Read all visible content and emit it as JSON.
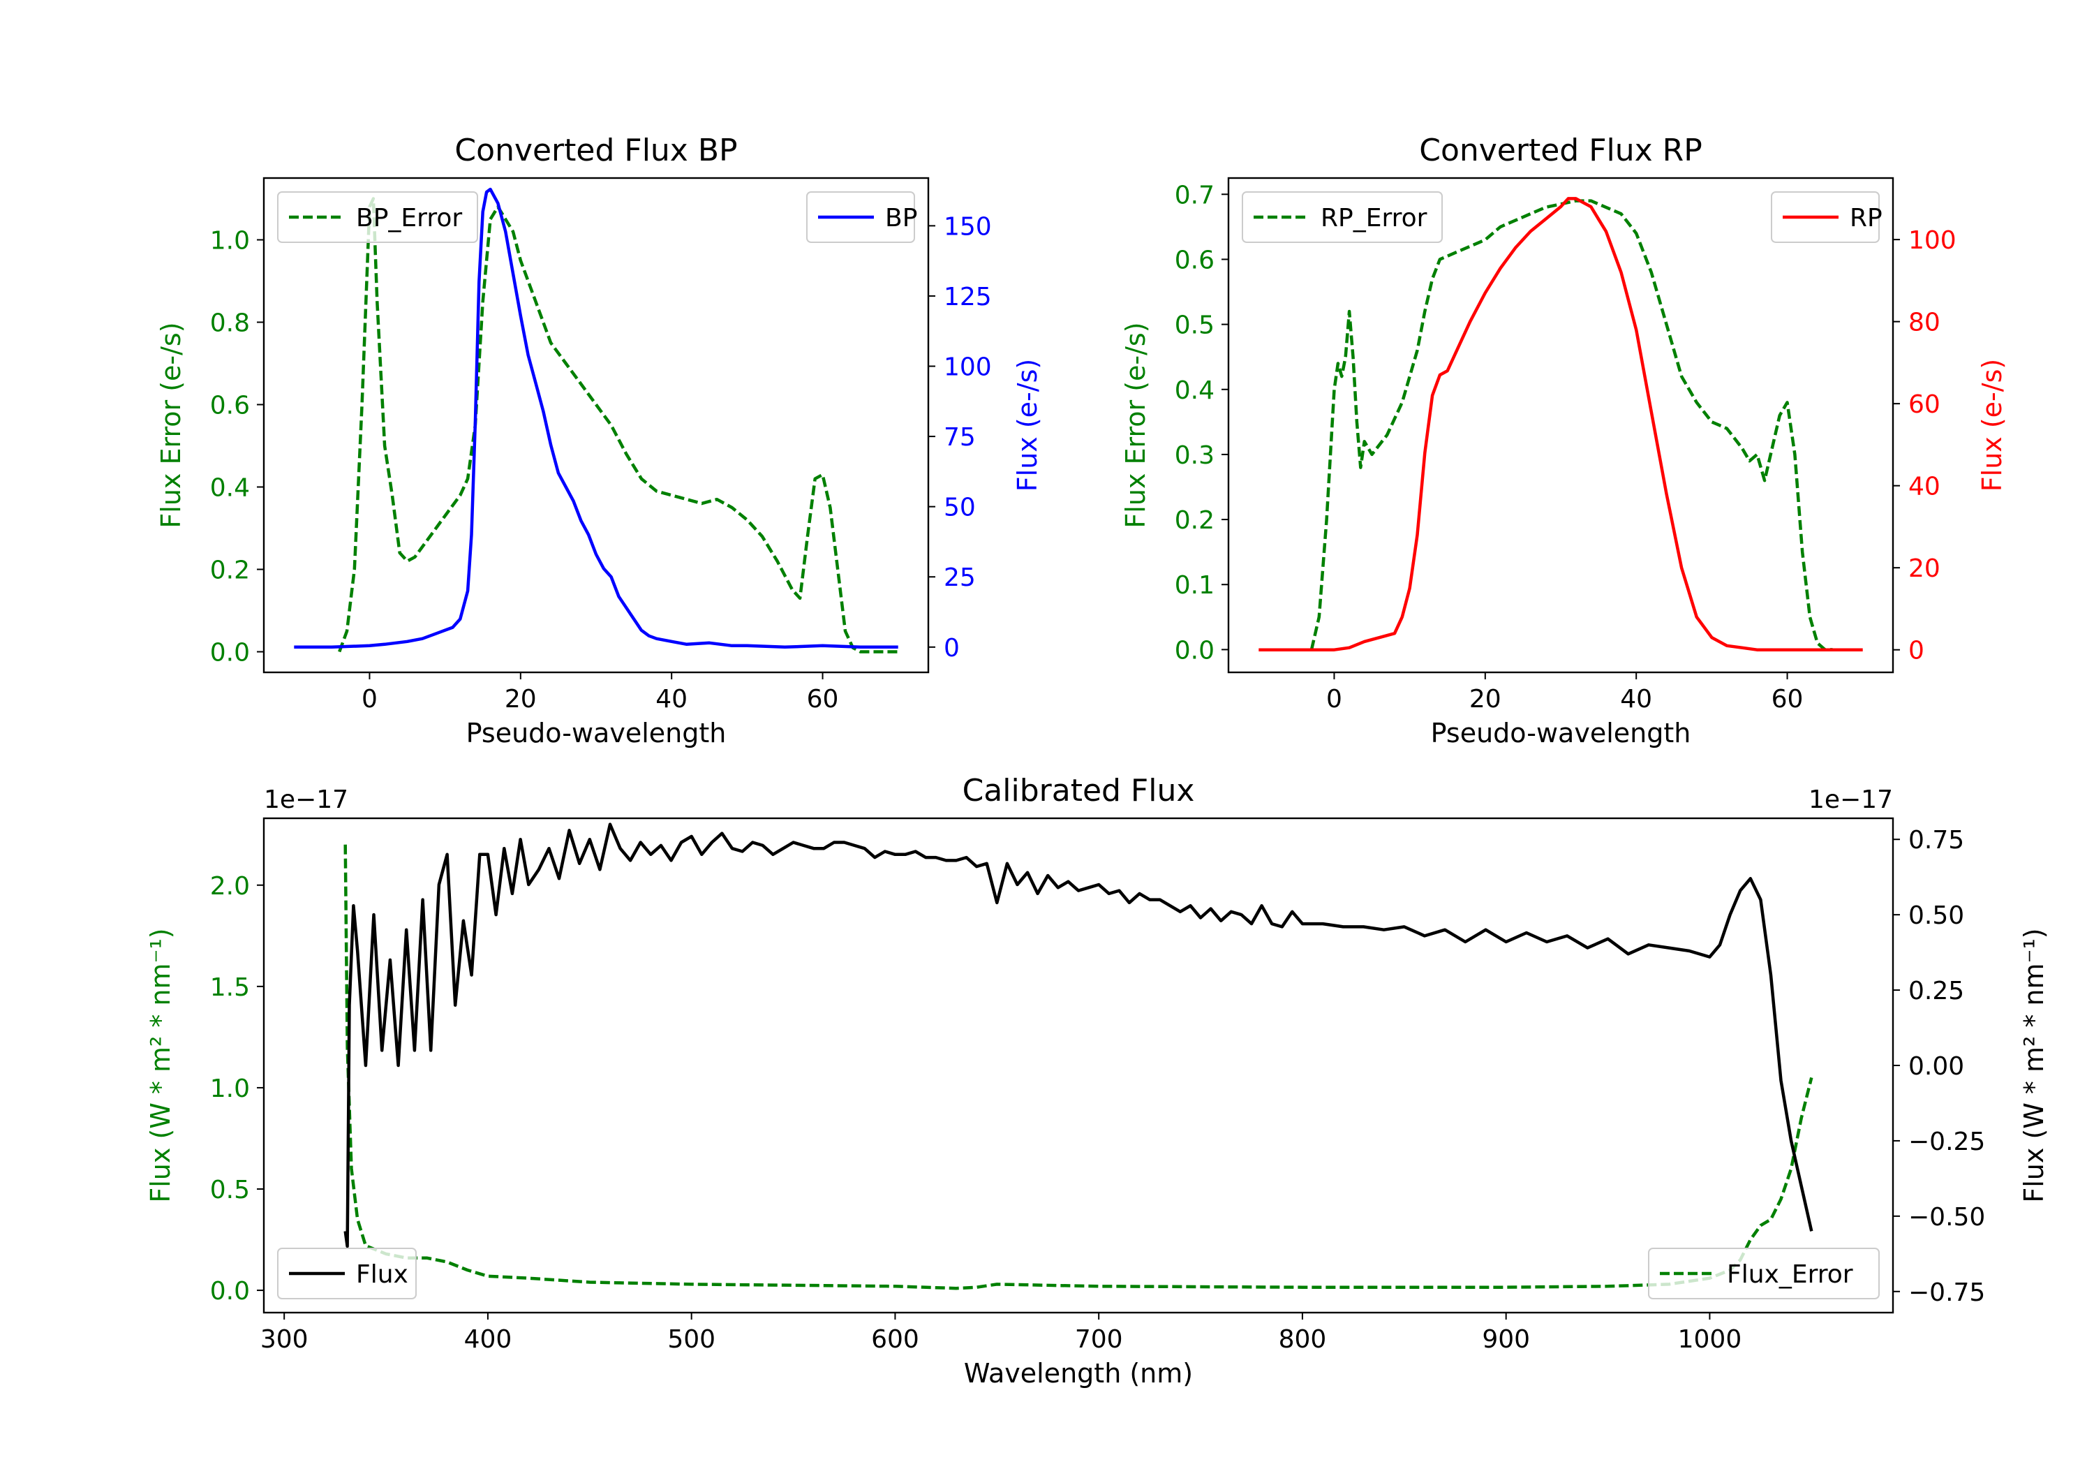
{
  "colors": {
    "error": "#008000",
    "bp": "#0000ff",
    "rp": "#ff0000",
    "flux": "#000000",
    "axis": "#000000"
  },
  "chart_data": [
    {
      "id": "bp",
      "type": "line",
      "title": "Converted Flux BP",
      "xlabel": "Pseudo-wavelength",
      "ylabel_left": "Flux Error (e-/s)",
      "ylabel_right": "Flux (e-/s)",
      "xlim": [
        -14,
        74
      ],
      "ylim_left": [
        -0.05,
        1.15
      ],
      "ylim_right": [
        -9,
        167
      ],
      "xticks": [
        0,
        20,
        40,
        60
      ],
      "yticks_left": [
        0.0,
        0.2,
        0.4,
        0.6,
        0.8,
        1.0
      ],
      "yticks_left_labels": [
        "0.0",
        "0.2",
        "0.4",
        "0.6",
        "0.8",
        "1.0"
      ],
      "yticks_right": [
        0,
        25,
        50,
        75,
        100,
        125,
        150
      ],
      "yticks_right_labels": [
        "0",
        "25",
        "50",
        "75",
        "100",
        "125",
        "150"
      ],
      "series": [
        {
          "name": "BP_Error",
          "axis": "left",
          "style": "dashed",
          "color": "#008000",
          "x": [
            -4,
            -3,
            -2,
            -1,
            0,
            0.5,
            1,
            2,
            3,
            4,
            5,
            6,
            8,
            10,
            12,
            13,
            14,
            15,
            16,
            17,
            18,
            19,
            20,
            22,
            24,
            26,
            28,
            30,
            32,
            34,
            36,
            38,
            40,
            42,
            44,
            46,
            48,
            50,
            52,
            54,
            56,
            57,
            58,
            59,
            60,
            61,
            62,
            63,
            64,
            65,
            70
          ],
          "y": [
            0.0,
            0.05,
            0.2,
            0.6,
            1.08,
            1.1,
            0.85,
            0.5,
            0.38,
            0.24,
            0.22,
            0.23,
            0.28,
            0.33,
            0.38,
            0.42,
            0.55,
            0.85,
            1.05,
            1.08,
            1.05,
            1.02,
            0.95,
            0.85,
            0.75,
            0.7,
            0.65,
            0.6,
            0.55,
            0.48,
            0.42,
            0.39,
            0.38,
            0.37,
            0.36,
            0.37,
            0.35,
            0.32,
            0.28,
            0.22,
            0.15,
            0.13,
            0.28,
            0.42,
            0.43,
            0.35,
            0.2,
            0.05,
            0.01,
            0.0,
            0.0
          ]
        },
        {
          "name": "BP",
          "axis": "right",
          "style": "solid",
          "color": "#0000ff",
          "x": [
            -10,
            -5,
            0,
            2,
            5,
            7,
            9,
            11,
            12,
            13,
            13.5,
            14,
            14.5,
            15,
            15.5,
            16,
            17,
            18,
            19,
            20,
            21,
            22,
            23,
            24,
            25,
            26,
            27,
            28,
            29,
            30,
            31,
            32,
            33,
            34,
            35,
            36,
            37,
            38,
            40,
            42,
            45,
            48,
            50,
            55,
            60,
            65,
            70
          ],
          "y": [
            0,
            0,
            0.5,
            1,
            2,
            3,
            5,
            7,
            10,
            20,
            40,
            80,
            130,
            155,
            162,
            163,
            158,
            148,
            133,
            118,
            104,
            94,
            84,
            72,
            62,
            57,
            52,
            45,
            40,
            33,
            28,
            25,
            18,
            14,
            10,
            6,
            4,
            3,
            2,
            1,
            1.5,
            0.5,
            0.5,
            0,
            0.5,
            0,
            0
          ]
        }
      ],
      "legend": [
        {
          "label": "BP_Error",
          "position": "upper-left"
        },
        {
          "label": "BP",
          "position": "upper-right"
        }
      ]
    },
    {
      "id": "rp",
      "type": "line",
      "title": "Converted Flux RP",
      "xlabel": "Pseudo-wavelength",
      "ylabel_left": "Flux Error (e-/s)",
      "ylabel_right": "Flux (e-/s)",
      "xlim": [
        -14,
        74
      ],
      "ylim_left": [
        -0.035,
        0.725
      ],
      "ylim_right": [
        -5.5,
        115
      ],
      "xticks": [
        0,
        20,
        40,
        60
      ],
      "yticks_left": [
        0.0,
        0.1,
        0.2,
        0.3,
        0.4,
        0.5,
        0.6,
        0.7
      ],
      "yticks_left_labels": [
        "0.0",
        "0.1",
        "0.2",
        "0.3",
        "0.4",
        "0.5",
        "0.6",
        "0.7"
      ],
      "yticks_right": [
        0,
        20,
        40,
        60,
        80,
        100
      ],
      "yticks_right_labels": [
        "0",
        "20",
        "40",
        "60",
        "80",
        "100"
      ],
      "series": [
        {
          "name": "RP_Error",
          "axis": "left",
          "style": "dashed",
          "color": "#008000",
          "x": [
            -3,
            -2,
            -1,
            0,
            0.5,
            1,
            1.5,
            2,
            2.5,
            3,
            3.5,
            4,
            5,
            7,
            9,
            11,
            12,
            13,
            14,
            16,
            18,
            20,
            22,
            24,
            26,
            28,
            30,
            32,
            34,
            36,
            38,
            40,
            42,
            44,
            46,
            48,
            50,
            52,
            54,
            55,
            56,
            57,
            58,
            59,
            60,
            61,
            62,
            63,
            64,
            65,
            66
          ],
          "y": [
            0.0,
            0.05,
            0.2,
            0.4,
            0.44,
            0.42,
            0.45,
            0.52,
            0.45,
            0.35,
            0.28,
            0.32,
            0.3,
            0.33,
            0.38,
            0.46,
            0.52,
            0.57,
            0.6,
            0.61,
            0.62,
            0.63,
            0.65,
            0.66,
            0.67,
            0.68,
            0.685,
            0.69,
            0.69,
            0.68,
            0.67,
            0.64,
            0.58,
            0.5,
            0.42,
            0.38,
            0.35,
            0.34,
            0.31,
            0.29,
            0.3,
            0.26,
            0.31,
            0.36,
            0.38,
            0.3,
            0.15,
            0.05,
            0.01,
            0.0,
            0.0
          ]
        },
        {
          "name": "RP",
          "axis": "right",
          "style": "solid",
          "color": "#ff0000",
          "x": [
            -10,
            -5,
            0,
            2,
            4,
            6,
            8,
            9,
            10,
            11,
            12,
            13,
            14,
            15,
            16,
            18,
            20,
            22,
            24,
            26,
            28,
            30,
            31,
            32,
            33,
            34,
            35,
            36,
            38,
            40,
            42,
            44,
            46,
            48,
            50,
            52,
            54,
            56,
            58,
            60,
            65,
            70
          ],
          "y": [
            0,
            0,
            0,
            0.5,
            2,
            3,
            4,
            8,
            15,
            28,
            48,
            62,
            67,
            68,
            72,
            80,
            87,
            93,
            98,
            102,
            105,
            108,
            110,
            110,
            109,
            108,
            105,
            102,
            92,
            78,
            58,
            38,
            20,
            8,
            3,
            1,
            0.5,
            0,
            0,
            0,
            0,
            0
          ]
        }
      ],
      "legend": [
        {
          "label": "RP_Error",
          "position": "upper-left"
        },
        {
          "label": "RP",
          "position": "upper-right"
        }
      ]
    },
    {
      "id": "calibrated",
      "type": "line",
      "title": "Calibrated Flux",
      "xlabel": "Wavelength (nm)",
      "ylabel_left": "Flux (W * m² * nm⁻¹)",
      "ylabel_right": "Flux (W * m² * nm⁻¹)",
      "offset_left": "1e−17",
      "offset_right": "1e−17",
      "xlim": [
        290,
        1090
      ],
      "ylim_left": [
        -0.11,
        2.33
      ],
      "ylim_right": [
        -0.82,
        0.82
      ],
      "xticks": [
        300,
        400,
        500,
        600,
        700,
        800,
        900,
        1000
      ],
      "yticks_left": [
        0.0,
        0.5,
        1.0,
        1.5,
        2.0
      ],
      "yticks_left_labels": [
        "0.0",
        "0.5",
        "1.0",
        "1.5",
        "2.0"
      ],
      "yticks_right": [
        -0.75,
        -0.5,
        -0.25,
        0.0,
        0.25,
        0.5,
        0.75
      ],
      "yticks_right_labels": [
        "−0.75",
        "−0.50",
        "−0.25",
        "0.00",
        "0.25",
        "0.50",
        "0.75"
      ],
      "series": [
        {
          "name": "Flux_Error",
          "axis": "left",
          "style": "dashed",
          "color": "#008000",
          "x": [
            330,
            331,
            333,
            336,
            340,
            350,
            360,
            370,
            380,
            390,
            400,
            420,
            450,
            500,
            550,
            600,
            630,
            640,
            650,
            700,
            800,
            900,
            950,
            980,
            1000,
            1010,
            1015,
            1020,
            1025,
            1030,
            1035,
            1040,
            1045,
            1050
          ],
          "y": [
            2.2,
            1.2,
            0.6,
            0.35,
            0.22,
            0.18,
            0.16,
            0.16,
            0.14,
            0.1,
            0.07,
            0.06,
            0.04,
            0.03,
            0.025,
            0.02,
            0.01,
            0.015,
            0.03,
            0.02,
            0.015,
            0.015,
            0.02,
            0.03,
            0.06,
            0.1,
            0.15,
            0.25,
            0.32,
            0.35,
            0.45,
            0.6,
            0.85,
            1.05
          ]
        },
        {
          "name": "Flux",
          "axis": "right",
          "style": "solid",
          "color": "#000000",
          "x": [
            330,
            331,
            332,
            334,
            336,
            340,
            344,
            348,
            352,
            356,
            360,
            364,
            368,
            372,
            376,
            380,
            384,
            388,
            392,
            396,
            400,
            404,
            408,
            412,
            416,
            420,
            425,
            430,
            435,
            440,
            445,
            450,
            455,
            460,
            465,
            470,
            475,
            480,
            485,
            490,
            495,
            500,
            505,
            510,
            515,
            520,
            525,
            530,
            535,
            540,
            545,
            550,
            555,
            560,
            565,
            570,
            575,
            580,
            585,
            590,
            595,
            600,
            605,
            610,
            615,
            620,
            625,
            630,
            635,
            640,
            645,
            650,
            655,
            660,
            665,
            670,
            675,
            680,
            685,
            690,
            695,
            700,
            705,
            710,
            715,
            720,
            725,
            730,
            735,
            740,
            745,
            750,
            755,
            760,
            765,
            770,
            775,
            780,
            785,
            790,
            795,
            800,
            810,
            820,
            830,
            840,
            850,
            860,
            870,
            880,
            890,
            900,
            910,
            920,
            930,
            940,
            950,
            960,
            970,
            980,
            990,
            1000,
            1005,
            1010,
            1015,
            1020,
            1025,
            1030,
            1035,
            1040,
            1045,
            1050
          ],
          "y": [
            -0.55,
            -0.6,
            0.2,
            0.53,
            0.38,
            0.0,
            0.5,
            0.05,
            0.35,
            -0.0,
            0.45,
            0.05,
            0.55,
            0.05,
            0.6,
            0.7,
            0.2,
            0.48,
            0.3,
            0.7,
            0.7,
            0.5,
            0.72,
            0.57,
            0.75,
            0.6,
            0.65,
            0.72,
            0.62,
            0.78,
            0.67,
            0.75,
            0.65,
            0.8,
            0.72,
            0.68,
            0.74,
            0.7,
            0.73,
            0.68,
            0.74,
            0.76,
            0.7,
            0.74,
            0.77,
            0.72,
            0.71,
            0.74,
            0.73,
            0.7,
            0.72,
            0.74,
            0.73,
            0.72,
            0.72,
            0.74,
            0.74,
            0.73,
            0.72,
            0.69,
            0.71,
            0.7,
            0.7,
            0.71,
            0.69,
            0.69,
            0.68,
            0.68,
            0.69,
            0.66,
            0.67,
            0.54,
            0.67,
            0.6,
            0.64,
            0.57,
            0.63,
            0.59,
            0.61,
            0.58,
            0.59,
            0.6,
            0.57,
            0.58,
            0.54,
            0.57,
            0.55,
            0.55,
            0.53,
            0.51,
            0.53,
            0.49,
            0.52,
            0.48,
            0.51,
            0.5,
            0.47,
            0.53,
            0.47,
            0.46,
            0.51,
            0.47,
            0.47,
            0.46,
            0.46,
            0.45,
            0.46,
            0.43,
            0.45,
            0.41,
            0.45,
            0.41,
            0.44,
            0.41,
            0.43,
            0.39,
            0.42,
            0.37,
            0.4,
            0.39,
            0.38,
            0.36,
            0.4,
            0.5,
            0.58,
            0.62,
            0.55,
            0.3,
            -0.05,
            -0.25,
            -0.4,
            -0.55
          ]
        }
      ],
      "legend": [
        {
          "label": "Flux",
          "position": "lower-left"
        },
        {
          "label": "Flux_Error",
          "position": "lower-right"
        }
      ]
    }
  ]
}
